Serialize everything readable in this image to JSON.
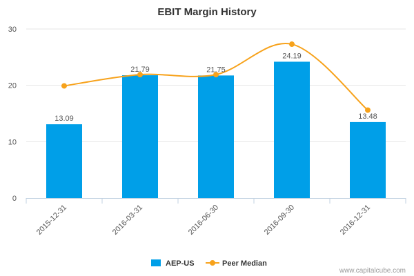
{
  "chart_data": {
    "type": "bar",
    "title": "EBIT Margin History",
    "xlabel": "",
    "ylabel": "",
    "categories": [
      "2015-12-31",
      "2016-03-31",
      "2016-06-30",
      "2016-09-30",
      "2016-12-31"
    ],
    "ylim": [
      0,
      30
    ],
    "yticks": [
      "0",
      "10",
      "20",
      "30"
    ],
    "grid": true,
    "legend_position": "bottom",
    "series": [
      {
        "name": "AEP-US",
        "type": "bar",
        "color": "#009fe8",
        "values": [
          13.09,
          21.79,
          21.75,
          24.19,
          13.48
        ],
        "labels": [
          "13.09",
          "21.79",
          "21.75",
          "24.19",
          "13.48"
        ]
      },
      {
        "name": "Peer Median",
        "type": "line",
        "color": "#f7a21b",
        "values": [
          19.9,
          21.9,
          21.9,
          27.3,
          15.6
        ]
      }
    ]
  },
  "credit": "www.capitalcube.com"
}
